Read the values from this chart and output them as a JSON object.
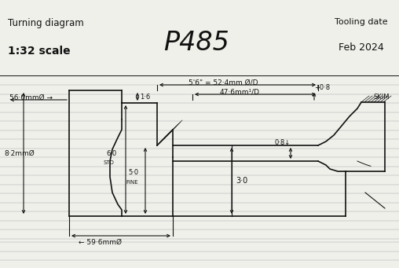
{
  "bg_color": "#f0f0eb",
  "line_color": "#111111",
  "title_main": "P485",
  "title_left_line1": "Turning diagram",
  "title_left_line2": "1:32 scale",
  "title_right_line1": "Tooling date",
  "title_right_line2": "Feb 2024",
  "figsize": [
    5.08,
    3.41
  ],
  "dpi": 100
}
